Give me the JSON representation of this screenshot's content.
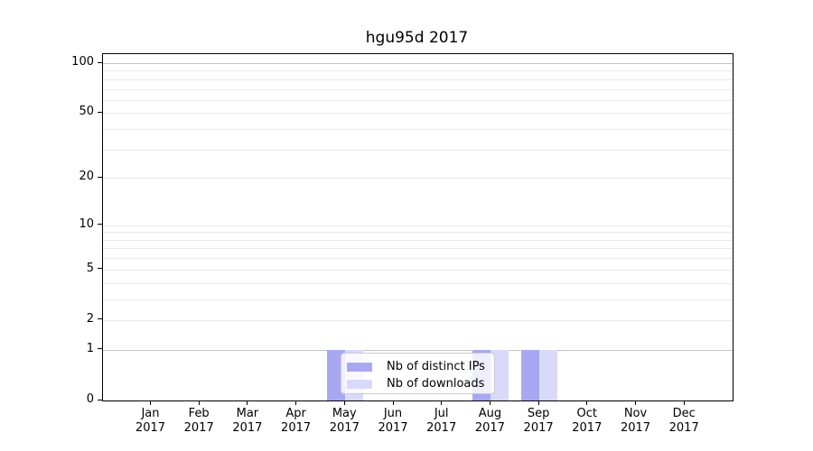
{
  "chart_data": {
    "type": "bar",
    "title": "hgu95d 2017",
    "x_months": [
      "Jan",
      "Feb",
      "Mar",
      "Apr",
      "May",
      "Jun",
      "Jul",
      "Aug",
      "Sep",
      "Oct",
      "Nov",
      "Dec"
    ],
    "x_year": "2017",
    "y_scale": "log10(1+y)",
    "y_ticks": [
      0,
      1,
      2,
      5,
      10,
      20,
      50,
      100
    ],
    "y_minor_gridlines": [
      2,
      3,
      4,
      5,
      6,
      7,
      8,
      9,
      10,
      20,
      30,
      40,
      50,
      60,
      70,
      80,
      90
    ],
    "y_major_gridlines": [
      1,
      100
    ],
    "ylim": [
      0,
      110
    ],
    "grid_on": true,
    "legend_position": "lower center",
    "series": [
      {
        "name": "Nb of distinct IPs",
        "color": "#a8a8f2",
        "values": [
          0,
          0,
          0,
          0,
          1,
          0,
          0,
          1,
          1,
          0,
          0,
          0
        ]
      },
      {
        "name": "Nb of downloads",
        "color": "#d9d9f8",
        "values": [
          0,
          0,
          0,
          0,
          1,
          0,
          0,
          1,
          1,
          0,
          0,
          0
        ]
      }
    ],
    "colors": {
      "minor_grid": "#e9e9e9",
      "major_grid": "#c5c5c5",
      "spine": "#000000",
      "text": "#000000",
      "background": "#ffffff"
    }
  }
}
